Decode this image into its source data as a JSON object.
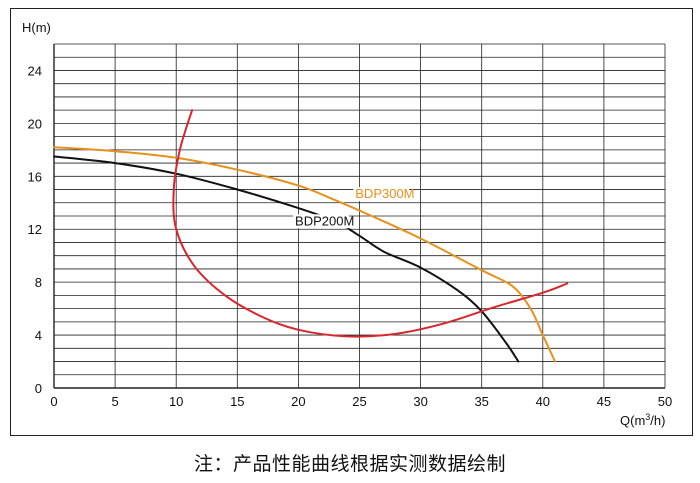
{
  "chart_data": {
    "type": "line",
    "title": "",
    "xlabel": "Q(m³/h)",
    "ylabel": "H(m)",
    "xlim": [
      0,
      50
    ],
    "ylim": [
      0,
      26
    ],
    "x_ticks": [
      "0",
      "5",
      "10",
      "15",
      "20",
      "25",
      "30",
      "35",
      "40",
      "45",
      "50"
    ],
    "y_ticks": [
      "0",
      "4",
      "8",
      "12",
      "16",
      "20",
      "24"
    ],
    "grid": true,
    "series": [
      {
        "name": "BDP300M",
        "color": "#E8901C",
        "label_at": [
          24,
          14.5
        ],
        "points": [
          [
            0,
            18.2
          ],
          [
            5,
            17.9
          ],
          [
            10,
            17.4
          ],
          [
            15,
            16.5
          ],
          [
            20,
            15.3
          ],
          [
            23,
            14.2
          ],
          [
            26,
            13.0
          ],
          [
            30,
            11.3
          ],
          [
            35,
            8.9
          ],
          [
            37.5,
            7.7
          ],
          [
            39,
            6.0
          ],
          [
            40,
            4.0
          ],
          [
            41,
            2.0
          ]
        ]
      },
      {
        "name": "BDP200M",
        "color": "#111111",
        "label_at": [
          23,
          12.6
        ],
        "points": [
          [
            0,
            17.5
          ],
          [
            5,
            17.0
          ],
          [
            10,
            16.2
          ],
          [
            15,
            15.0
          ],
          [
            20,
            13.6
          ],
          [
            23,
            12.6
          ],
          [
            25,
            11.5
          ],
          [
            27,
            10.3
          ],
          [
            30,
            9.1
          ],
          [
            33,
            7.4
          ],
          [
            35,
            5.8
          ],
          [
            37,
            3.4
          ],
          [
            38,
            2.0
          ]
        ]
      },
      {
        "name": "",
        "color": "#D8262C",
        "points": [
          [
            11.3,
            21.0
          ],
          [
            10.3,
            18.0
          ],
          [
            9.8,
            15.0
          ],
          [
            10.0,
            12.0
          ],
          [
            11.5,
            9.2
          ],
          [
            14,
            7.0
          ],
          [
            17,
            5.4
          ],
          [
            20,
            4.4
          ],
          [
            24,
            3.9
          ],
          [
            28,
            4.1
          ],
          [
            32,
            4.9
          ],
          [
            36,
            6.1
          ],
          [
            40,
            7.2
          ],
          [
            42,
            7.9
          ]
        ]
      }
    ]
  },
  "note": "注：产品性能曲线根据实测数据绘制"
}
